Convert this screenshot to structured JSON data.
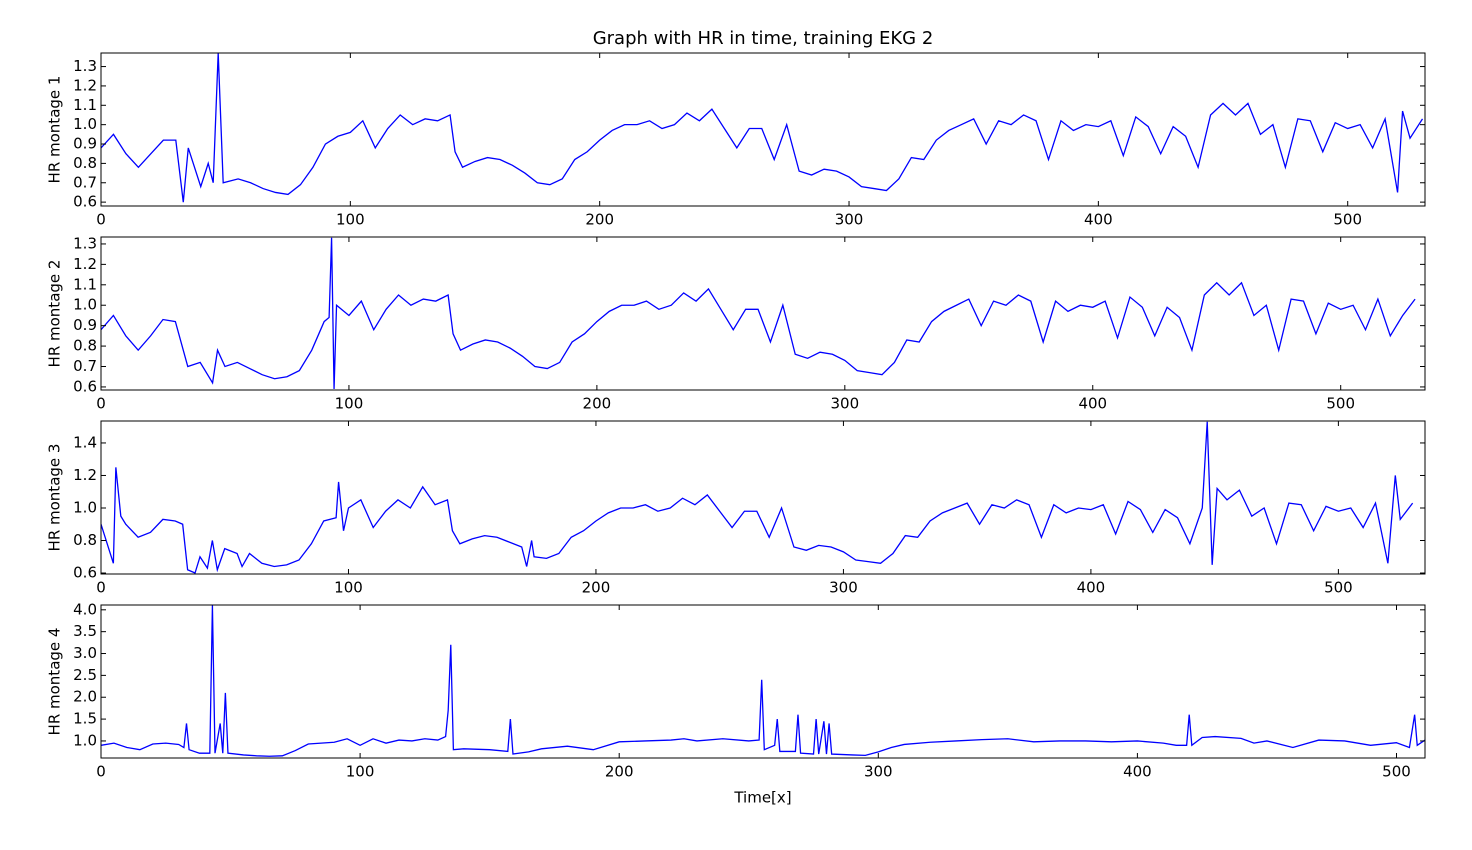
{
  "chart_data": [
    {
      "type": "line",
      "title": "Graph with HR in time, training EKG 2",
      "ylabel": "HR montage 1",
      "xlim": [
        0,
        531
      ],
      "ylim": [
        0.58,
        1.37
      ],
      "xticks": [
        0,
        100,
        200,
        300,
        400,
        500
      ],
      "yticks": [
        0.6,
        0.7,
        0.8,
        0.9,
        {
          "value": 1,
          "label": "1.0"
        },
        1.1,
        1.2,
        1.3
      ],
      "x": [
        0,
        5,
        10,
        15,
        20,
        25,
        30,
        33,
        35,
        40,
        43,
        45,
        47,
        49,
        55,
        60,
        65,
        70,
        75,
        80,
        85,
        90,
        95,
        100,
        105,
        110,
        115,
        120,
        125,
        130,
        135,
        140,
        142,
        145,
        150,
        155,
        160,
        165,
        170,
        175,
        180,
        185,
        190,
        195,
        200,
        205,
        210,
        215,
        220,
        225,
        230,
        235,
        240,
        245,
        250,
        255,
        260,
        265,
        270,
        275,
        280,
        285,
        290,
        295,
        300,
        305,
        310,
        315,
        320,
        325,
        330,
        335,
        340,
        345,
        350,
        355,
        360,
        365,
        370,
        375,
        380,
        385,
        390,
        395,
        400,
        405,
        410,
        415,
        420,
        425,
        430,
        435,
        440,
        445,
        450,
        455,
        460,
        465,
        470,
        475,
        480,
        485,
        490,
        495,
        500,
        505,
        510,
        515,
        520,
        522,
        525,
        530
      ],
      "series": [
        {
          "color": "#0000ff",
          "values": [
            0.88,
            0.95,
            0.85,
            0.78,
            0.85,
            0.92,
            0.92,
            0.6,
            0.88,
            0.68,
            0.8,
            0.7,
            1.37,
            0.7,
            0.72,
            0.7,
            0.67,
            0.65,
            0.64,
            0.69,
            0.78,
            0.9,
            0.94,
            0.96,
            1.02,
            0.88,
            0.98,
            1.05,
            1.0,
            1.03,
            1.02,
            1.05,
            0.86,
            0.78,
            0.81,
            0.83,
            0.82,
            0.79,
            0.75,
            0.7,
            0.69,
            0.72,
            0.82,
            0.86,
            0.92,
            0.97,
            1.0,
            1.0,
            1.02,
            0.98,
            1.0,
            1.06,
            1.02,
            1.08,
            0.98,
            0.88,
            0.98,
            0.98,
            0.82,
            1.0,
            0.76,
            0.74,
            0.77,
            0.76,
            0.73,
            0.68,
            0.67,
            0.66,
            0.72,
            0.83,
            0.82,
            0.92,
            0.97,
            1.0,
            1.03,
            0.9,
            1.02,
            1.0,
            1.05,
            1.02,
            0.82,
            1.02,
            0.97,
            1.0,
            0.99,
            1.02,
            0.84,
            1.04,
            0.99,
            0.85,
            0.99,
            0.94,
            0.78,
            1.05,
            1.11,
            1.05,
            1.11,
            0.95,
            1.0,
            0.78,
            1.03,
            1.02,
            0.86,
            1.01,
            0.98,
            1.0,
            0.88,
            1.03,
            0.65,
            1.07,
            0.93,
            1.03
          ]
        }
      ]
    },
    {
      "type": "line",
      "ylabel": "HR montage 2",
      "xlim": [
        0,
        534
      ],
      "ylim": [
        0.585,
        1.334
      ],
      "xticks": [
        0,
        100,
        200,
        300,
        400,
        500
      ],
      "yticks": [
        0.6,
        0.7,
        0.8,
        0.9,
        {
          "value": 1,
          "label": "1.0"
        },
        1.1,
        1.2,
        1.3
      ],
      "x": [
        0,
        5,
        10,
        15,
        20,
        25,
        30,
        35,
        40,
        45,
        47,
        50,
        55,
        60,
        65,
        70,
        75,
        80,
        85,
        90,
        92,
        93,
        94,
        95,
        100,
        105,
        110,
        115,
        120,
        125,
        130,
        135,
        140,
        142,
        145,
        150,
        155,
        160,
        165,
        170,
        175,
        180,
        185,
        190,
        195,
        200,
        205,
        210,
        215,
        220,
        225,
        230,
        235,
        240,
        245,
        250,
        255,
        260,
        265,
        270,
        275,
        280,
        285,
        290,
        295,
        300,
        305,
        310,
        315,
        320,
        325,
        330,
        335,
        340,
        345,
        350,
        355,
        360,
        365,
        370,
        375,
        380,
        385,
        390,
        395,
        400,
        405,
        410,
        415,
        420,
        425,
        430,
        435,
        440,
        445,
        450,
        455,
        460,
        465,
        470,
        475,
        480,
        485,
        490,
        495,
        500,
        505,
        510,
        515,
        520,
        525,
        530
      ],
      "series": [
        {
          "color": "#0000ff",
          "values": [
            0.88,
            0.95,
            0.85,
            0.78,
            0.85,
            0.93,
            0.92,
            0.7,
            0.72,
            0.62,
            0.78,
            0.7,
            0.72,
            0.69,
            0.66,
            0.64,
            0.65,
            0.68,
            0.78,
            0.92,
            0.94,
            1.33,
            0.59,
            1.0,
            0.95,
            1.02,
            0.88,
            0.98,
            1.05,
            1.0,
            1.03,
            1.02,
            1.05,
            0.86,
            0.78,
            0.81,
            0.83,
            0.82,
            0.79,
            0.75,
            0.7,
            0.69,
            0.72,
            0.82,
            0.86,
            0.92,
            0.97,
            1.0,
            1.0,
            1.02,
            0.98,
            1.0,
            1.06,
            1.02,
            1.08,
            0.98,
            0.88,
            0.98,
            0.98,
            0.82,
            1.0,
            0.76,
            0.74,
            0.77,
            0.76,
            0.73,
            0.68,
            0.67,
            0.66,
            0.72,
            0.83,
            0.82,
            0.92,
            0.97,
            1.0,
            1.03,
            0.9,
            1.02,
            1.0,
            1.05,
            1.02,
            0.82,
            1.02,
            0.97,
            1.0,
            0.99,
            1.02,
            0.84,
            1.04,
            0.99,
            0.85,
            0.99,
            0.94,
            0.78,
            1.05,
            1.11,
            1.05,
            1.11,
            0.95,
            1.0,
            0.78,
            1.03,
            1.02,
            0.86,
            1.01,
            0.98,
            1.0,
            0.88,
            1.03,
            0.85,
            0.95,
            1.03
          ]
        }
      ]
    },
    {
      "type": "line",
      "ylabel": "HR montage 3",
      "xlim": [
        0,
        535
      ],
      "ylim": [
        0.594,
        1.535
      ],
      "xticks": [
        0,
        100,
        200,
        300,
        400,
        500
      ],
      "yticks": [
        0.6,
        0.8,
        {
          "value": 1,
          "label": "1.0"
        },
        1.2,
        1.4
      ],
      "x": [
        0,
        5,
        6,
        8,
        10,
        15,
        20,
        25,
        30,
        33,
        35,
        38,
        40,
        43,
        45,
        47,
        50,
        55,
        57,
        60,
        65,
        70,
        75,
        80,
        85,
        90,
        95,
        96,
        98,
        100,
        105,
        110,
        115,
        120,
        125,
        130,
        135,
        140,
        142,
        145,
        150,
        155,
        160,
        165,
        170,
        172,
        174,
        175,
        180,
        185,
        190,
        195,
        200,
        205,
        210,
        215,
        220,
        225,
        230,
        235,
        240,
        245,
        250,
        255,
        260,
        265,
        270,
        275,
        280,
        285,
        290,
        295,
        300,
        305,
        310,
        315,
        320,
        325,
        330,
        335,
        340,
        345,
        350,
        355,
        360,
        365,
        370,
        375,
        380,
        385,
        390,
        395,
        400,
        405,
        410,
        415,
        420,
        425,
        430,
        435,
        440,
        445,
        447,
        449,
        451,
        455,
        460,
        465,
        470,
        475,
        480,
        485,
        490,
        495,
        500,
        505,
        510,
        515,
        520,
        523,
        525,
        530
      ],
      "series": [
        {
          "color": "#0000ff",
          "values": [
            0.9,
            0.66,
            1.25,
            0.95,
            0.9,
            0.82,
            0.85,
            0.93,
            0.92,
            0.9,
            0.62,
            0.6,
            0.7,
            0.63,
            0.8,
            0.62,
            0.75,
            0.72,
            0.64,
            0.72,
            0.66,
            0.64,
            0.65,
            0.68,
            0.78,
            0.92,
            0.94,
            1.16,
            0.86,
            1.0,
            1.05,
            0.88,
            0.98,
            1.05,
            1.0,
            1.13,
            1.02,
            1.05,
            0.86,
            0.78,
            0.81,
            0.83,
            0.82,
            0.79,
            0.76,
            0.64,
            0.8,
            0.7,
            0.69,
            0.72,
            0.82,
            0.86,
            0.92,
            0.97,
            1.0,
            1.0,
            1.02,
            0.98,
            1.0,
            1.06,
            1.02,
            1.08,
            0.98,
            0.88,
            0.98,
            0.98,
            0.82,
            1.0,
            0.76,
            0.74,
            0.77,
            0.76,
            0.73,
            0.68,
            0.67,
            0.66,
            0.72,
            0.83,
            0.82,
            0.92,
            0.97,
            1.0,
            1.03,
            0.9,
            1.02,
            1.0,
            1.05,
            1.02,
            0.82,
            1.02,
            0.97,
            1.0,
            0.99,
            1.02,
            0.84,
            1.04,
            0.99,
            0.85,
            0.99,
            0.94,
            0.78,
            1.0,
            1.53,
            0.65,
            1.12,
            1.05,
            1.11,
            0.95,
            1.0,
            0.78,
            1.03,
            1.02,
            0.86,
            1.01,
            0.98,
            1.0,
            0.88,
            1.03,
            0.66,
            1.2,
            0.93,
            1.03
          ]
        }
      ]
    },
    {
      "type": "line",
      "ylabel": "HR montage 4",
      "xlabel": "Time[x]",
      "xlim": [
        0,
        511
      ],
      "ylim": [
        0.61,
        4.11
      ],
      "xticks": [
        0,
        100,
        200,
        300,
        400,
        500
      ],
      "yticks": [
        {
          "value": 1,
          "label": "1.0"
        },
        1.5,
        {
          "value": 2,
          "label": "2.0"
        },
        2.5,
        {
          "value": 3,
          "label": "3.0"
        },
        3.5,
        {
          "value": 4,
          "label": "4.0"
        }
      ],
      "x": [
        0,
        5,
        10,
        15,
        20,
        25,
        30,
        32,
        33,
        34,
        38,
        42,
        43,
        44,
        46,
        47,
        48,
        49,
        55,
        60,
        65,
        70,
        75,
        80,
        90,
        95,
        100,
        105,
        110,
        115,
        120,
        125,
        130,
        133,
        134,
        135,
        136,
        140,
        150,
        157,
        158,
        159,
        165,
        170,
        180,
        190,
        200,
        210,
        220,
        225,
        230,
        240,
        250,
        254,
        255,
        256,
        260,
        261,
        262,
        268,
        269,
        270,
        275,
        276,
        277,
        279,
        280,
        281,
        282,
        290,
        295,
        300,
        305,
        310,
        320,
        330,
        340,
        350,
        360,
        370,
        380,
        390,
        400,
        410,
        415,
        419,
        420,
        421,
        425,
        430,
        440,
        445,
        450,
        460,
        470,
        480,
        490,
        500,
        505,
        507,
        508,
        511
      ],
      "series": [
        {
          "color": "#0000ff",
          "values": [
            0.9,
            0.95,
            0.85,
            0.8,
            0.93,
            0.95,
            0.92,
            0.85,
            1.4,
            0.8,
            0.72,
            0.72,
            4.1,
            0.72,
            1.4,
            0.72,
            2.1,
            0.72,
            0.68,
            0.66,
            0.65,
            0.66,
            0.78,
            0.93,
            0.97,
            1.05,
            0.9,
            1.05,
            0.95,
            1.02,
            1.0,
            1.05,
            1.02,
            1.1,
            1.7,
            3.2,
            0.8,
            0.82,
            0.8,
            0.76,
            1.5,
            0.7,
            0.75,
            0.82,
            0.88,
            0.8,
            0.98,
            1.0,
            1.02,
            1.05,
            1.0,
            1.05,
            1.0,
            1.02,
            2.4,
            0.8,
            0.9,
            1.5,
            0.76,
            0.76,
            1.6,
            0.72,
            0.7,
            1.5,
            0.7,
            1.45,
            0.7,
            1.4,
            0.7,
            0.68,
            0.67,
            0.75,
            0.85,
            0.92,
            0.97,
            1.0,
            1.03,
            1.05,
            0.98,
            1.0,
            1.0,
            0.98,
            1.0,
            0.95,
            0.9,
            0.9,
            1.6,
            0.9,
            1.08,
            1.1,
            1.06,
            0.95,
            1.0,
            0.85,
            1.02,
            1.0,
            0.9,
            0.96,
            0.85,
            1.6,
            0.9,
            1.02
          ]
        }
      ]
    }
  ]
}
